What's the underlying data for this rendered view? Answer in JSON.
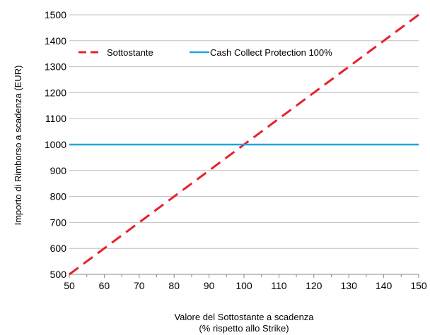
{
  "chart_data": {
    "type": "line",
    "xlabel_line1": "Valore del Sottostante a scadenza",
    "xlabel_line2": "(% rispetto allo Strike)",
    "ylabel": "Importo di Rimborso a scadenza  (EUR)",
    "xlim": [
      50,
      150
    ],
    "ylim": [
      500,
      1500
    ],
    "x_ticks": [
      50,
      60,
      70,
      80,
      90,
      100,
      110,
      120,
      130,
      140,
      150
    ],
    "y_ticks": [
      500,
      600,
      700,
      800,
      900,
      1000,
      1100,
      1200,
      1300,
      1400,
      1500
    ],
    "grid": "horizontal",
    "legend_position": "top-left",
    "series": [
      {
        "name": "Sottostante",
        "color": "#e8202a",
        "style": "dashed",
        "x": [
          50,
          150
        ],
        "y": [
          500,
          1500
        ]
      },
      {
        "name": "Cash Collect Protection 100%",
        "color": "#1ea5dc",
        "style": "solid",
        "x": [
          50,
          150
        ],
        "y": [
          1000,
          1000
        ]
      }
    ]
  }
}
